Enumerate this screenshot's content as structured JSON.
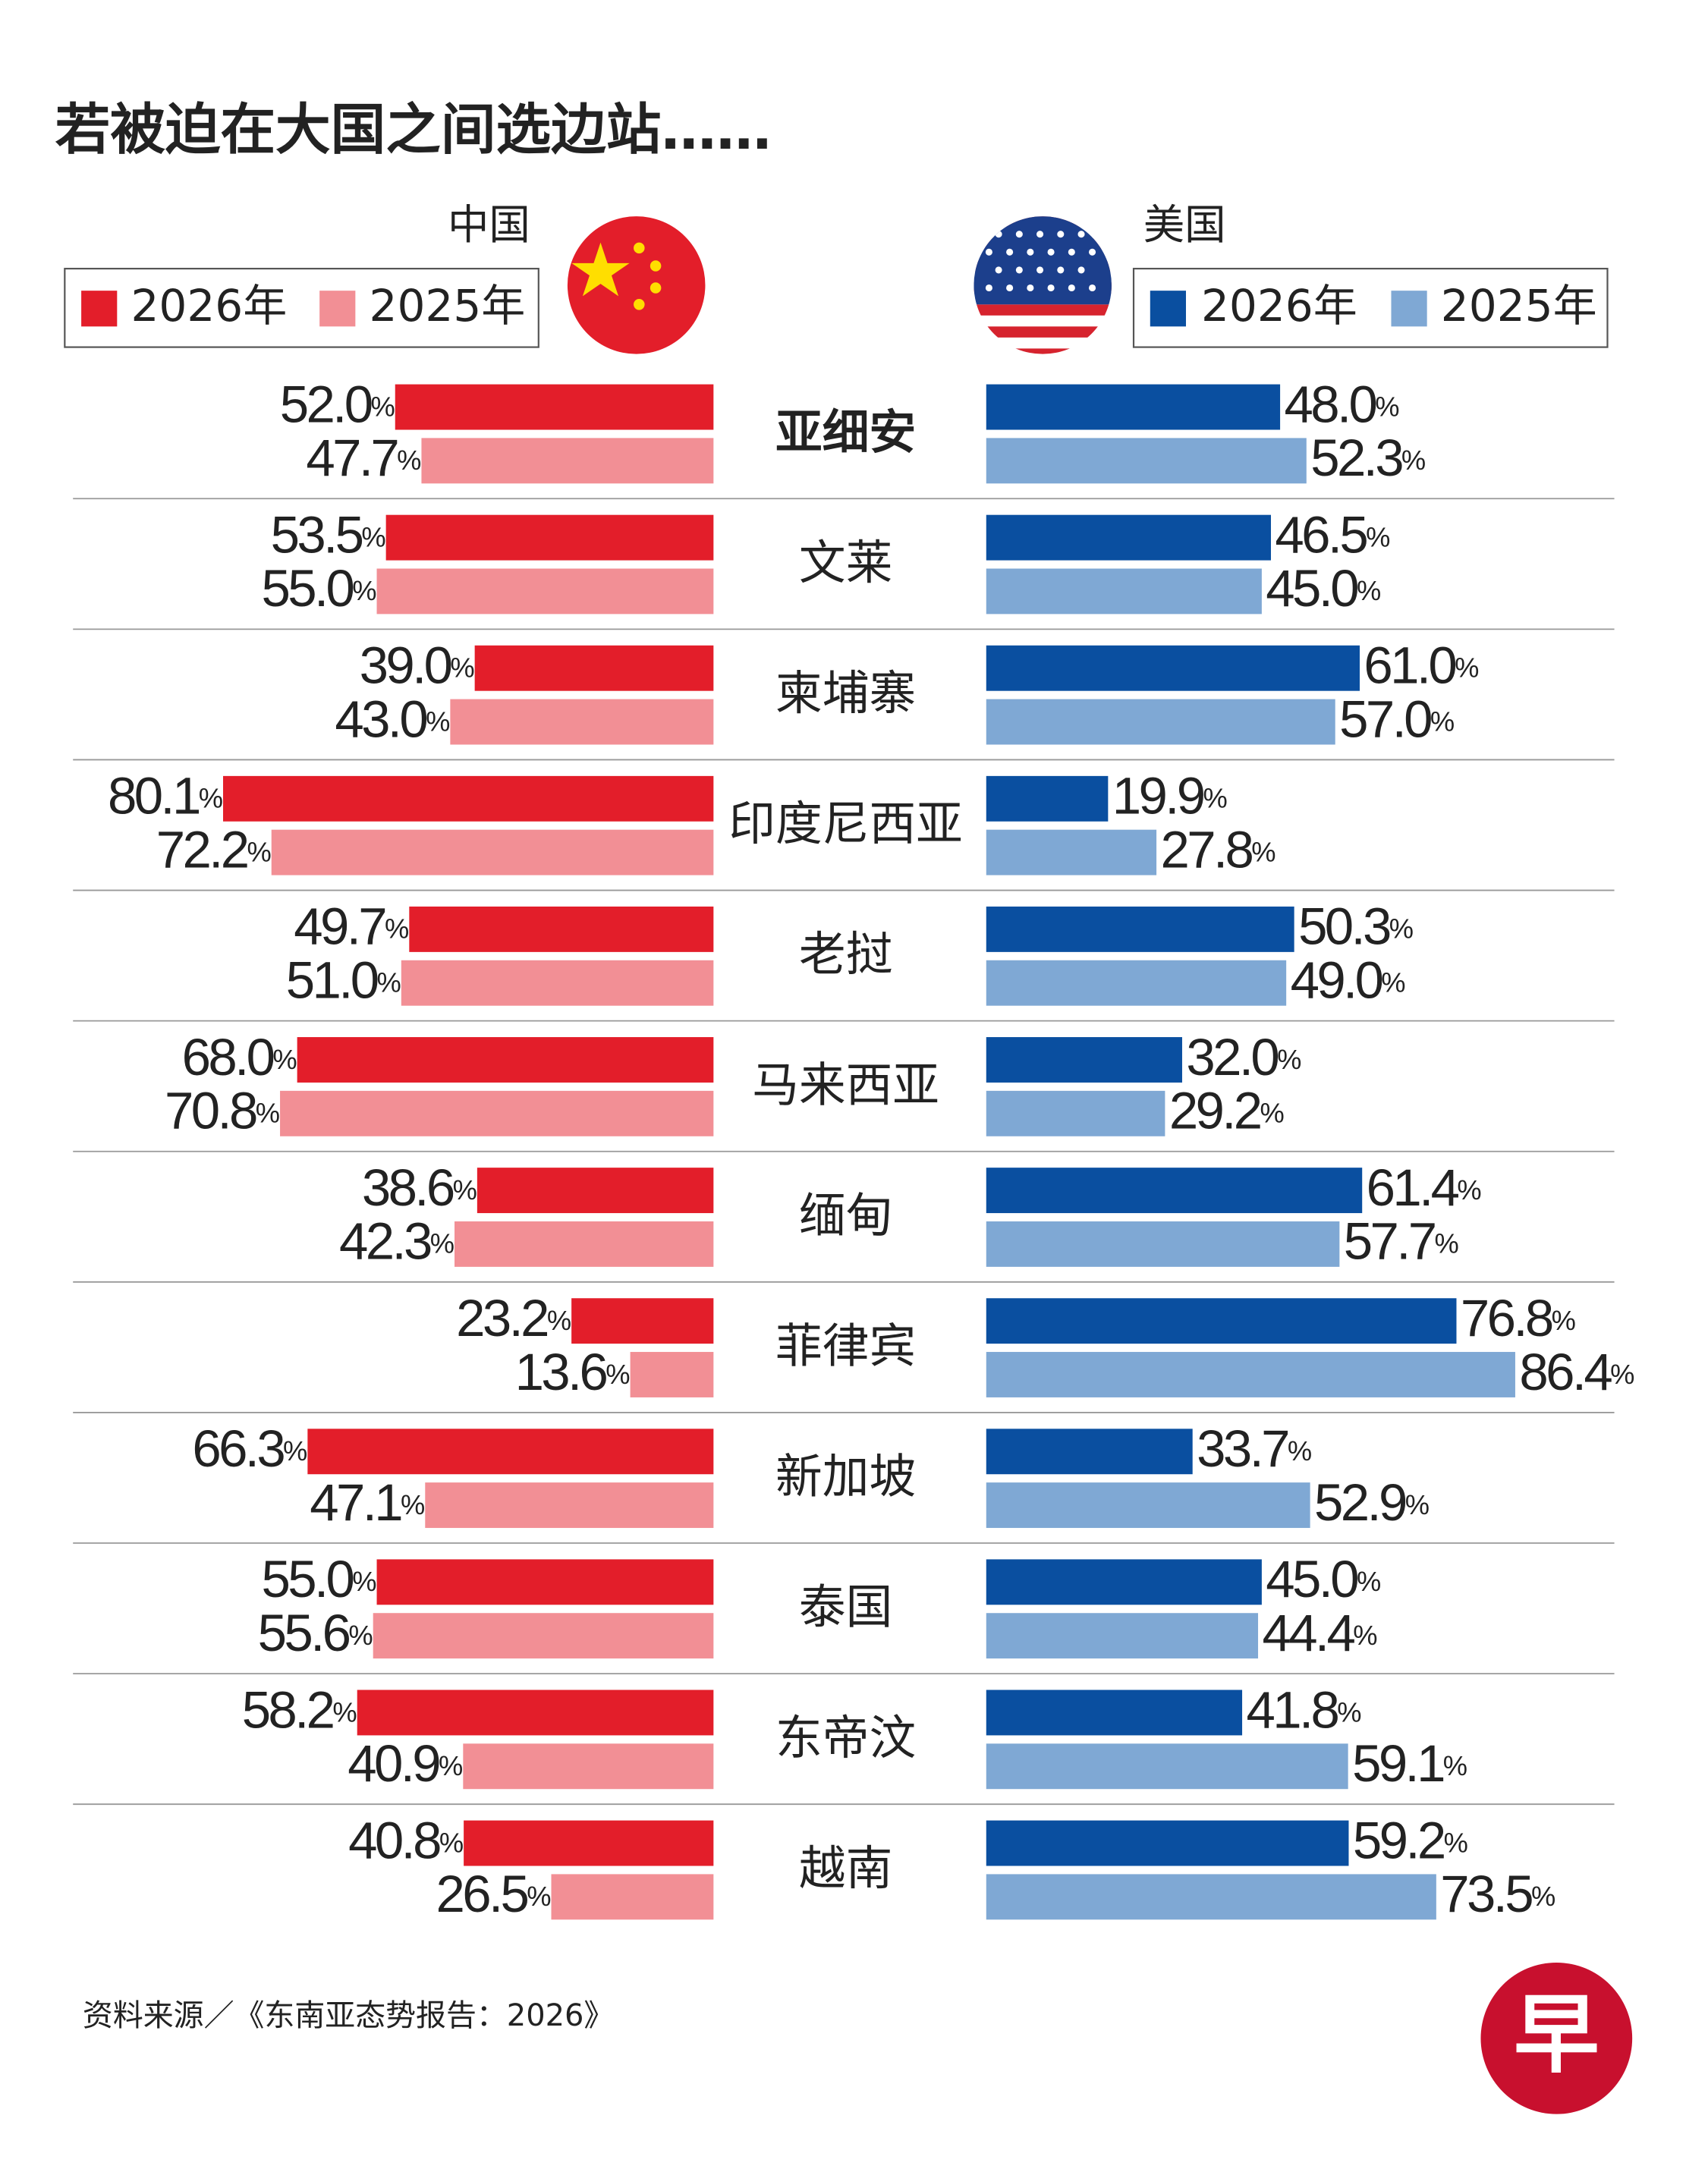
{
  "chart_data": {
    "type": "butterfly",
    "title": "若被迫在大国之间选边站……",
    "categories": [
      "亚细安",
      "文莱",
      "柬埔寨",
      "印度尼西亚",
      "老挝",
      "马来西亚",
      "缅甸",
      "菲律宾",
      "新加坡",
      "泰国",
      "东帝汶",
      "越南"
    ],
    "left": {
      "name": "中国",
      "series": [
        {
          "name": "2026年",
          "color": "#e31e2a",
          "values": [
            52.0,
            53.5,
            39.0,
            80.1,
            49.7,
            68.0,
            38.6,
            23.2,
            66.3,
            55.0,
            58.2,
            40.8
          ],
          "value_labels": [
            "52.0%",
            "53.5%",
            "39.0%",
            "80.1%",
            "49.7%",
            "68.0%",
            "38.6%",
            "23.2%",
            "66.3%",
            "55.0%",
            "58.2%",
            "40.8%"
          ]
        },
        {
          "name": "2025年",
          "color": "#f28f95",
          "values": [
            47.7,
            55.0,
            43.0,
            72.2,
            51.0,
            70.8,
            42.3,
            13.6,
            47.1,
            55.6,
            40.9,
            26.5
          ],
          "value_labels": [
            "47.7%",
            "55.0%",
            "43.0%",
            "72.2%",
            "51.0%",
            "70.8%",
            "42.3%",
            "13.6%",
            "47.1%",
            "55.6%",
            "40.9%",
            "26.5%"
          ]
        }
      ]
    },
    "right": {
      "name": "美国",
      "series": [
        {
          "name": "2026年",
          "color": "#0a4fa0",
          "values": [
            48.0,
            46.5,
            61.0,
            19.9,
            50.3,
            32.0,
            61.4,
            76.8,
            33.7,
            45.0,
            41.8,
            59.2
          ],
          "value_labels": [
            "48.0%",
            "46.5%",
            "61.0%",
            "19.9%",
            "50.3%",
            "32.0%",
            "61.4%",
            "76.8%",
            "33.7%",
            "45.0%",
            "41.8%",
            "59.2%"
          ]
        },
        {
          "name": "2025年",
          "color": "#7fa8d4",
          "values": [
            52.3,
            45.0,
            57.0,
            27.8,
            49.0,
            29.2,
            57.7,
            86.4,
            52.9,
            44.4,
            59.1,
            73.5
          ],
          "value_labels": [
            "52.3%",
            "45.0%",
            "57.0%",
            "27.8%",
            "49.0%",
            "29.2%",
            "57.7%",
            "86.4%",
            "52.9%",
            "44.4%",
            "59.1%",
            "73.5%"
          ]
        }
      ]
    }
  },
  "source": "资料来源／《东南亚态势报告：2026》",
  "logo": "早"
}
